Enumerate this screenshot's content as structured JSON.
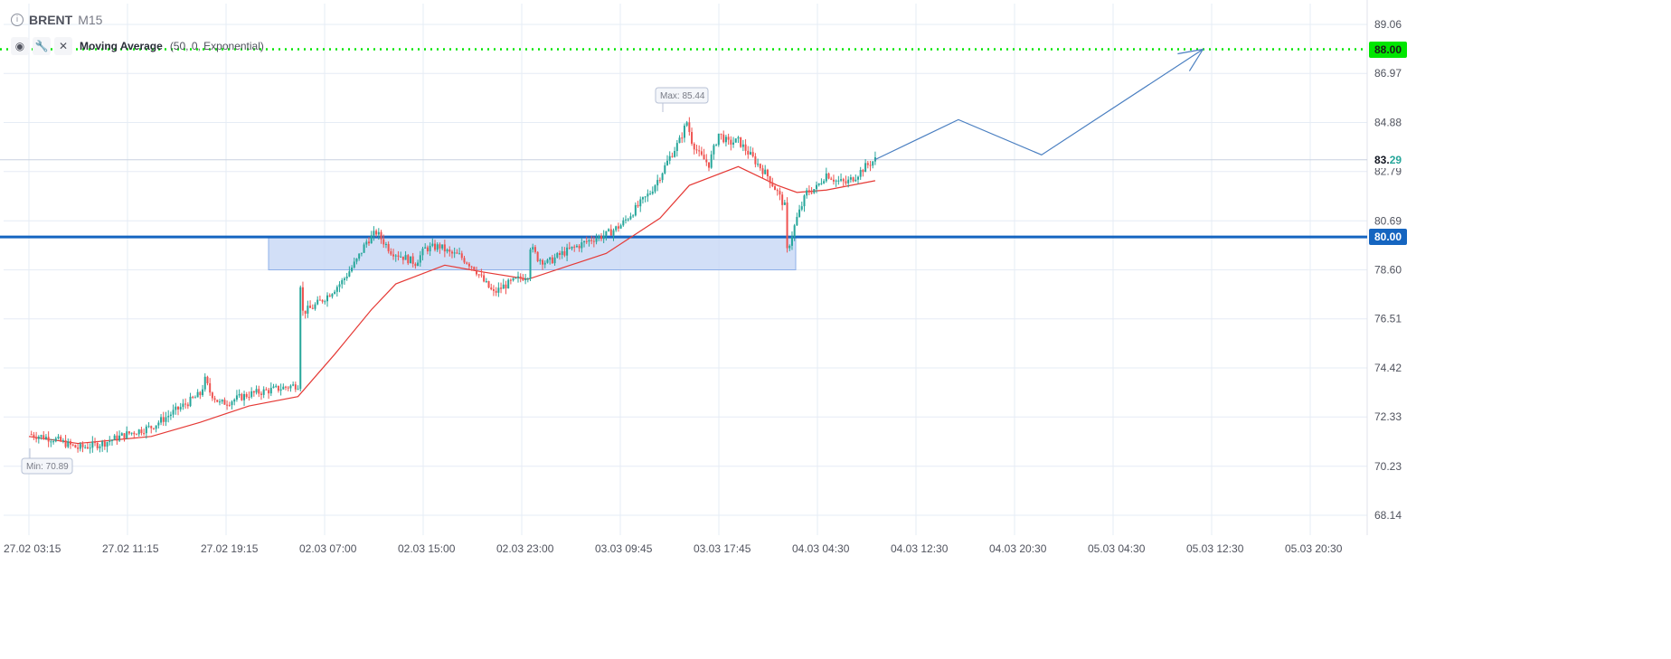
{
  "header": {
    "symbol": "BRENT",
    "timeframe": "M15",
    "info_icon": "info-icon"
  },
  "indicator": {
    "name": "Moving Average",
    "params": "(50, 0, Exponential)",
    "icons": [
      "eye-icon",
      "wrench-icon",
      "close-icon"
    ]
  },
  "colors": {
    "up": "#26a69a",
    "down": "#ef5350",
    "ma": "#e53935",
    "support": "#1565c0",
    "target": "#00e600",
    "zone": "#c7d7f5",
    "projection": "#4a7fc1"
  },
  "price_tags": {
    "target": "88.00",
    "support": "80.00",
    "current_main": "83.",
    "current_emph": "29"
  },
  "chart_data": {
    "type": "candlestick",
    "y_ticks": [
      "89.06",
      "86.97",
      "84.88",
      "82.79",
      "80.69",
      "78.60",
      "76.51",
      "74.42",
      "72.33",
      "70.23",
      "68.14"
    ],
    "x_ticks": [
      "27.02 03:15",
      "27.02 11:15",
      "27.02 19:15",
      "02.03 07:00",
      "02.03 15:00",
      "02.03 23:00",
      "03.03 09:45",
      "03.03 17:45",
      "04.03 04:30",
      "04.03 12:30",
      "04.03 20:30",
      "05.03 04:30",
      "05.03 12:30",
      "05.03 20:30"
    ],
    "ylim": [
      67.5,
      89.8
    ],
    "max_label": "Max: 85.44",
    "min_label": "Min: 70.89",
    "levels": {
      "target": 88.0,
      "support": 80.0,
      "current": 83.29
    },
    "zone": {
      "from": "02.03 02:00",
      "to": "04.03 02:00",
      "low": 78.6,
      "high": 80.0
    },
    "close_path": [
      [
        0,
        71.6
      ],
      [
        10,
        71.4
      ],
      [
        20,
        71.0
      ],
      [
        30,
        71.2
      ],
      [
        40,
        71.6
      ],
      [
        50,
        71.9
      ],
      [
        60,
        72.6
      ],
      [
        70,
        73.3
      ],
      [
        72,
        73.9
      ],
      [
        74,
        73.4
      ],
      [
        78,
        72.9
      ],
      [
        82,
        73.0
      ],
      [
        90,
        73.3
      ],
      [
        110,
        73.7
      ],
      [
        111,
        78.0
      ],
      [
        112,
        76.8
      ],
      [
        116,
        77.0
      ],
      [
        122,
        77.5
      ],
      [
        128,
        78.1
      ],
      [
        134,
        79.0
      ],
      [
        138,
        79.8
      ],
      [
        142,
        80.2
      ],
      [
        148,
        79.4
      ],
      [
        154,
        79.1
      ],
      [
        158,
        78.9
      ],
      [
        162,
        79.5
      ],
      [
        168,
        79.6
      ],
      [
        172,
        79.3
      ],
      [
        176,
        79.2
      ],
      [
        182,
        78.7
      ],
      [
        186,
        78.1
      ],
      [
        190,
        77.6
      ],
      [
        194,
        77.9
      ],
      [
        198,
        78.1
      ],
      [
        204,
        78.4
      ],
      [
        205,
        79.6
      ],
      [
        208,
        79.1
      ],
      [
        212,
        78.9
      ],
      [
        218,
        79.3
      ],
      [
        224,
        79.6
      ],
      [
        230,
        79.9
      ],
      [
        236,
        80.1
      ],
      [
        242,
        80.5
      ],
      [
        248,
        81.2
      ],
      [
        254,
        81.9
      ],
      [
        258,
        82.6
      ],
      [
        262,
        83.4
      ],
      [
        266,
        84.1
      ],
      [
        269,
        84.9
      ],
      [
        271,
        84.1
      ],
      [
        274,
        83.5
      ],
      [
        278,
        83.1
      ],
      [
        282,
        84.4
      ],
      [
        286,
        84.0
      ],
      [
        290,
        84.1
      ],
      [
        294,
        83.6
      ],
      [
        298,
        83.1
      ],
      [
        302,
        82.6
      ],
      [
        306,
        81.9
      ],
      [
        309,
        81.3
      ],
      [
        310,
        79.4
      ],
      [
        314,
        80.8
      ],
      [
        318,
        81.9
      ],
      [
        322,
        82.1
      ],
      [
        326,
        82.7
      ],
      [
        330,
        82.4
      ],
      [
        334,
        82.3
      ],
      [
        338,
        82.6
      ],
      [
        342,
        83.0
      ],
      [
        346,
        83.3
      ]
    ],
    "moving_average": [
      [
        0,
        71.5
      ],
      [
        20,
        71.2
      ],
      [
        50,
        71.5
      ],
      [
        70,
        72.1
      ],
      [
        90,
        72.8
      ],
      [
        110,
        73.2
      ],
      [
        125,
        75.0
      ],
      [
        140,
        76.9
      ],
      [
        150,
        78.0
      ],
      [
        170,
        78.8
      ],
      [
        186,
        78.5
      ],
      [
        204,
        78.2
      ],
      [
        236,
        79.3
      ],
      [
        258,
        80.8
      ],
      [
        270,
        82.2
      ],
      [
        290,
        83.0
      ],
      [
        298,
        82.6
      ],
      [
        306,
        82.2
      ],
      [
        314,
        81.9
      ],
      [
        326,
        82.0
      ],
      [
        346,
        82.4
      ]
    ],
    "projection": [
      [
        346,
        83.3
      ],
      [
        380,
        85.0
      ],
      [
        414,
        83.5
      ],
      [
        480,
        88.0
      ]
    ]
  }
}
